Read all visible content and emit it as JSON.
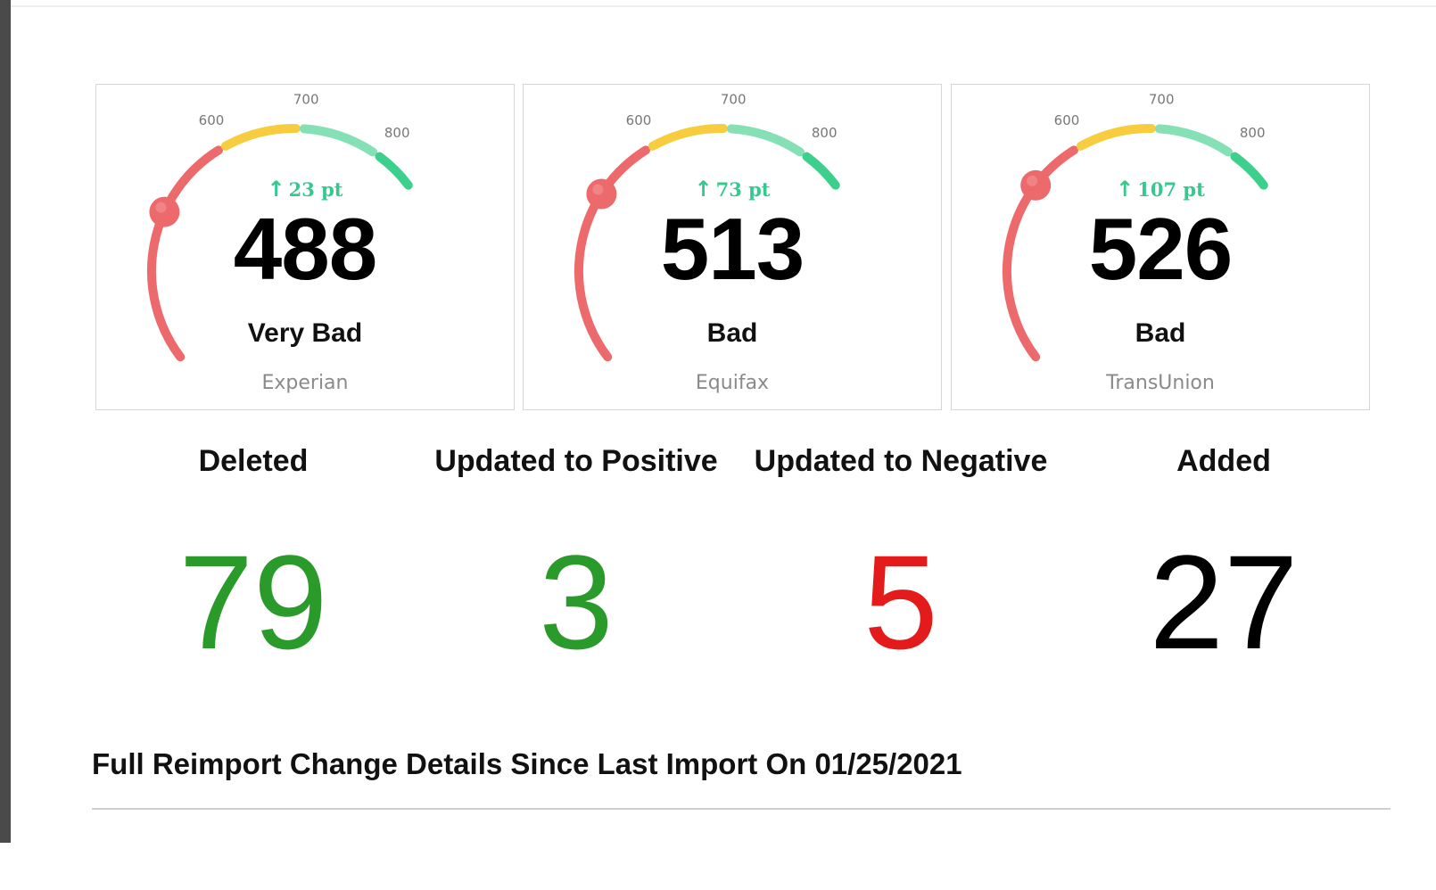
{
  "bureau_scores": [
    {
      "bureau": "Experian",
      "score": "488",
      "score_value": 488,
      "rating": "Very Bad",
      "change": "23 pt",
      "change_direction": "up"
    },
    {
      "bureau": "Equifax",
      "score": "513",
      "score_value": 513,
      "rating": "Bad",
      "change": "73 pt",
      "change_direction": "up"
    },
    {
      "bureau": "TransUnion",
      "score": "526",
      "score_value": 526,
      "rating": "Bad",
      "change": "107 pt",
      "change_direction": "up"
    }
  ],
  "gauge_scale": {
    "min": 300,
    "max": 850,
    "tick_labels": [
      "600",
      "700",
      "800"
    ],
    "segments": [
      {
        "from": 300,
        "to": 590,
        "color": "#ec6a6c"
      },
      {
        "from": 600,
        "to": 690,
        "color": "#f7cc3f"
      },
      {
        "from": 700,
        "to": 790,
        "color": "#85e0b6"
      },
      {
        "from": 800,
        "to": 850,
        "color": "#3dd08c"
      }
    ],
    "marker_color": "#ec6a6c",
    "change_color": "#35c98e",
    "arrow_icon": "arrow-up-icon"
  },
  "change_summary": [
    {
      "label": "Deleted",
      "value": "79",
      "color": "#2a9a2a"
    },
    {
      "label": "Updated to Positive",
      "value": "3",
      "color": "#2a9a2a"
    },
    {
      "label": "Updated to Negative",
      "value": "5",
      "color": "#e31b1b"
    },
    {
      "label": "Added",
      "value": "27",
      "color": "#000000"
    }
  ],
  "section": {
    "title": "Full Reimport Change Details Since Last Import On 01/25/2021"
  }
}
